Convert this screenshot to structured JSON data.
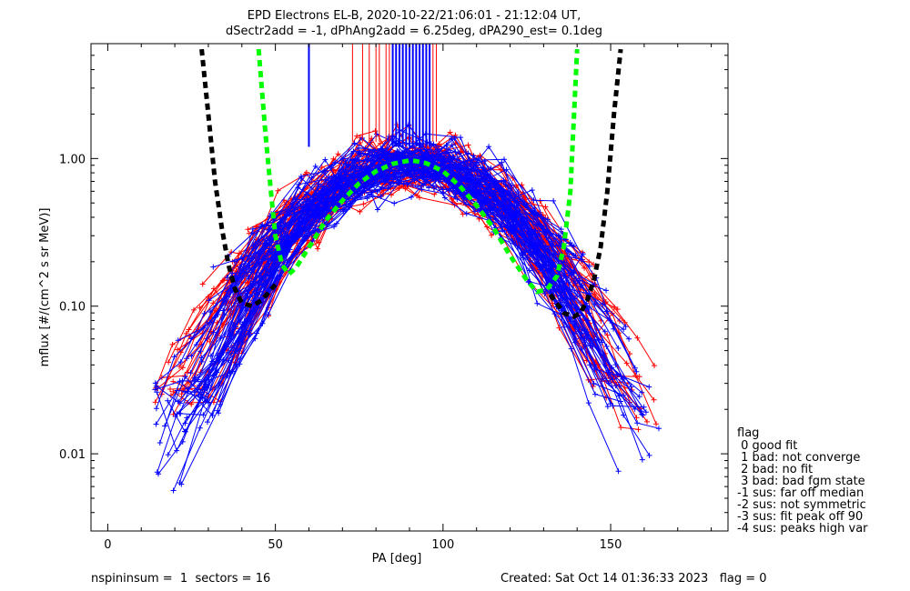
{
  "chart_data": {
    "type": "line",
    "title_line1": "EPD Electrons EL-B, 2020-10-22/21:06:01 - 21:12:04 UT,",
    "title_line2": "dSectr2add = -1, dPhAng2add = 6.25deg, dPA290_est=   0.1deg",
    "xlabel": "PA [deg]",
    "ylabel": "mflux [#/(cm^2 s sr MeV)]",
    "xlim": [
      -5,
      185
    ],
    "ylim": [
      0.003,
      6.0
    ],
    "yscale": "log",
    "xticks": [
      0,
      50,
      100,
      150
    ],
    "xticklabels": [
      "0",
      "50",
      "100",
      "150"
    ],
    "yticks": [
      0.01,
      0.1,
      1.0
    ],
    "yticklabels": [
      "0.01",
      "0.10",
      "1.00"
    ],
    "grid": false,
    "colors": {
      "red": "#ff0000",
      "blue": "#0000ff",
      "green": "#00ff00",
      "black": "#000000"
    },
    "series": [
      {
        "name": "",
        "color": "#00ff00",
        "style": "dashed",
        "x": [
          45,
          47,
          49,
          50,
          52,
          54,
          56,
          60,
          65,
          70,
          75,
          80,
          85,
          90,
          92,
          95,
          100,
          105,
          110,
          115,
          120,
          125,
          128,
          131,
          134,
          136,
          138,
          140
        ],
        "y": [
          5.5,
          1.5,
          0.5,
          0.3,
          0.19,
          0.165,
          0.18,
          0.25,
          0.38,
          0.52,
          0.68,
          0.82,
          0.92,
          0.97,
          0.96,
          0.93,
          0.82,
          0.65,
          0.48,
          0.34,
          0.22,
          0.15,
          0.125,
          0.13,
          0.16,
          0.25,
          0.6,
          5.5
        ]
      },
      {
        "name": "",
        "color": "#000000",
        "style": "dashed",
        "x": [
          28,
          30,
          32,
          34,
          36,
          38,
          40,
          43,
          46,
          50
        ],
        "y": [
          5.5,
          2.0,
          0.7,
          0.34,
          0.19,
          0.13,
          0.105,
          0.1,
          0.11,
          0.14
        ]
      },
      {
        "name": "",
        "color": "#000000",
        "style": "dashed",
        "x": [
          132,
          136,
          139,
          141,
          143,
          145,
          147,
          149,
          151,
          153
        ],
        "y": [
          0.12,
          0.09,
          0.085,
          0.09,
          0.11,
          0.15,
          0.25,
          0.6,
          2.0,
          5.5
        ]
      }
    ],
    "vertical_markers": {
      "red": [
        73,
        76,
        78,
        80,
        81,
        83,
        84,
        86,
        87,
        88,
        89,
        93,
        97,
        98
      ],
      "blue": [
        60,
        85,
        86,
        87,
        88,
        89,
        90,
        91,
        92,
        93,
        94,
        95,
        96
      ],
      "ymin": {
        "red": 1.3,
        "blue": 1.2
      }
    },
    "measurements": {
      "red_series_count": 60,
      "blue_series_count": 75
    },
    "legend": {
      "title": "flag",
      "placement": "right",
      "entries": [
        " 0 good fit",
        " 1 bad: not converge",
        " 2 bad: no fit",
        " 3 bad: bad fgm state",
        "-1 sus: far off median",
        "-2 sus: not symmetric",
        "-3 sus: fit peak off 90",
        "-4 sus: peaks high var"
      ]
    },
    "footer": {
      "left": "nspininsum =  1  sectors = 16",
      "right": "Created: Sat Oct 14 01:36:33 2023   flag = 0"
    }
  }
}
